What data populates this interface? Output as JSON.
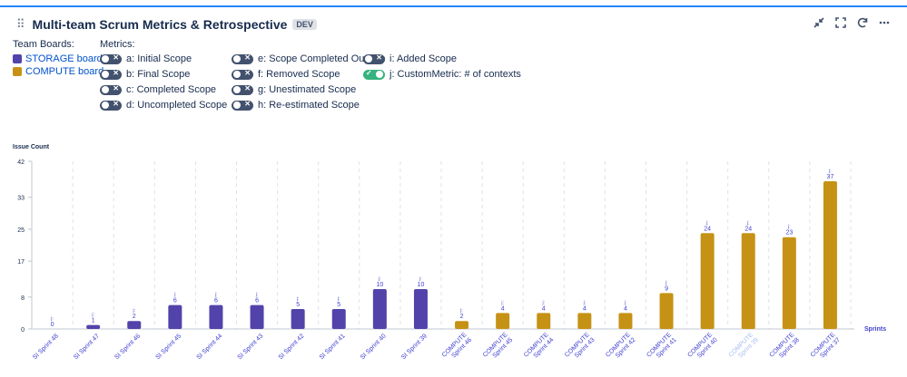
{
  "header": {
    "title": "Multi-team Scrum Metrics & Retrospective",
    "badge": "DEV"
  },
  "icons": [
    "shrink-icon",
    "fullscreen-icon",
    "refresh-icon",
    "more-icon"
  ],
  "boards": {
    "label": "Team Boards:",
    "items": [
      {
        "label": "STORAGE board",
        "color": "#5243aa"
      },
      {
        "label": "COMPUTE board",
        "color": "#c69215"
      }
    ]
  },
  "metrics": {
    "label": "Metrics:",
    "items": [
      {
        "label": "a: Initial Scope",
        "on": false
      },
      {
        "label": "b: Final Scope",
        "on": false
      },
      {
        "label": "c: Completed Scope",
        "on": false
      },
      {
        "label": "d: Uncompleted Scope",
        "on": false
      },
      {
        "label": "e: Scope Completed Outside",
        "on": false
      },
      {
        "label": "f: Removed Scope",
        "on": false
      },
      {
        "label": "g: Unestimated Scope",
        "on": false
      },
      {
        "label": "h: Re-estimated Scope",
        "on": false
      },
      {
        "label": "i: Added Scope",
        "on": false
      },
      {
        "label": "j: CustomMetric: # of contexts",
        "on": true
      }
    ]
  },
  "chart_data": {
    "type": "bar",
    "ylabel": "Issue Count",
    "xlabel": "Sprints",
    "ylim": [
      0,
      42
    ],
    "yticks": [
      0,
      8,
      17,
      25,
      33,
      42
    ],
    "bar_marker": "j:",
    "categories": [
      "SI Sprint 48",
      "SI Sprint 47",
      "SI Sprint 46",
      "SI Sprint 45",
      "SI Sprint 44",
      "SI Sprint 43",
      "SI Sprint 42",
      "SI Sprint 41",
      "SI Sprint 40",
      "SI Sprint 39",
      "COMPUTE Sprint 46",
      "COMPUTE Sprint 45",
      "COMPUTE Sprint 44",
      "COMPUTE Sprint 43",
      "COMPUTE Sprint 42",
      "COMPUTE Sprint 41",
      "COMPUTE Sprint 40",
      "COMPUTE Sprint 39",
      "COMPUTE Sprint 38",
      "COMPUTE Sprint 37"
    ],
    "values": [
      0,
      1,
      2,
      6,
      6,
      6,
      5,
      5,
      10,
      10,
      2,
      4,
      4,
      4,
      4,
      9,
      24,
      24,
      23,
      37
    ],
    "board_index": [
      0,
      0,
      0,
      0,
      0,
      0,
      0,
      0,
      0,
      0,
      1,
      1,
      1,
      1,
      1,
      1,
      1,
      1,
      1,
      1
    ],
    "label_colors": {
      "normal": "#3e3fd0",
      "muted": "#a8bff0",
      "muted_index": 17
    }
  }
}
